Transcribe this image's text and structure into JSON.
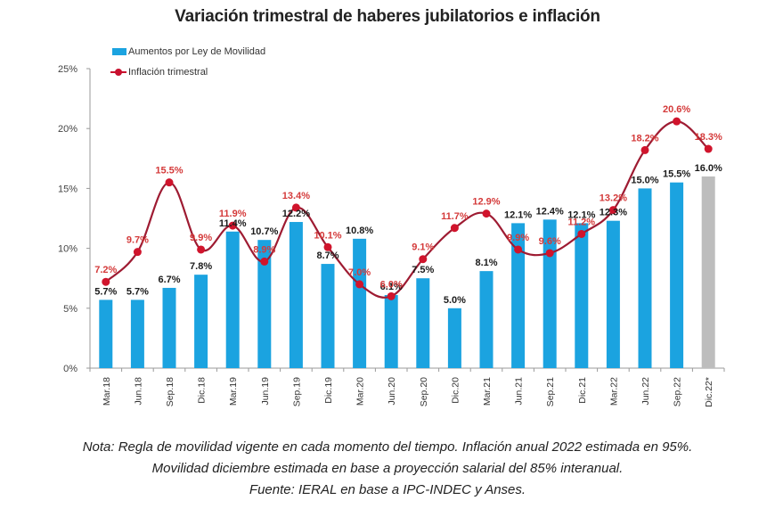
{
  "chart_data": {
    "type": "bar",
    "title": "Variación trimestral de haberes jubilatorios e inflación",
    "xlabel": "",
    "ylabel": "",
    "ylim": [
      0,
      25
    ],
    "yticks": [
      "0%",
      "5%",
      "10%",
      "15%",
      "20%",
      "25%"
    ],
    "ytick_values": [
      0,
      5,
      10,
      15,
      20,
      25
    ],
    "grid": false,
    "legend_position": "top-left",
    "categories": [
      "Mar.18",
      "Jun.18",
      "Sep.18",
      "Dic.18",
      "Mar.19",
      "Jun.19",
      "Sep.19",
      "Dic.19",
      "Mar.20",
      "Jun.20",
      "Sep.20",
      "Dic.20",
      "Mar.21",
      "Jun.21",
      "Sep.21",
      "Dic.21",
      "Mar.22",
      "Jun.22",
      "Sep.22",
      "Dic.22*"
    ],
    "series": [
      {
        "name": "Aumentos por Ley de Movilidad",
        "type": "bar",
        "color": "#1ba3e0",
        "estimated_color": "#bdbdbd",
        "estimated_index": 19,
        "values": [
          5.7,
          5.7,
          6.7,
          7.8,
          11.4,
          10.7,
          12.2,
          8.7,
          10.8,
          6.1,
          7.5,
          5.0,
          8.1,
          12.1,
          12.4,
          12.1,
          12.3,
          15.0,
          15.5,
          16.0
        ],
        "labels": [
          "5.7%",
          "5.7%",
          "6.7%",
          "7.8%",
          "11.4%",
          "10.7%",
          "12.2%",
          "8.7%",
          "10.8%",
          "6.1%",
          "7.5%",
          "5.0%",
          "8.1%",
          "12.1%",
          "12.4%",
          "12.1%",
          "12.3%",
          "15.0%",
          "15.5%",
          "16.0%"
        ]
      },
      {
        "name": "Inflación trimestral",
        "type": "line",
        "color": "#c8102e",
        "smooth": true,
        "values": [
          7.2,
          9.7,
          15.5,
          9.9,
          11.9,
          8.9,
          13.4,
          10.1,
          7.0,
          6.0,
          9.1,
          11.7,
          12.9,
          9.9,
          9.6,
          11.2,
          13.2,
          18.2,
          20.6,
          18.3
        ],
        "labels": [
          "7.2%",
          "9.7%",
          "15.5%",
          "9.9%",
          "11.9%",
          "8.9%",
          "13.4%",
          "10.1%",
          "7.0%",
          "6.0%",
          "9.1%",
          "11.7%",
          "12.9%",
          "9.9%",
          "9.6%",
          "11.2%",
          "13.2%",
          "18.2%",
          "20.6%",
          "18.3%"
        ]
      }
    ],
    "notes": [
      "Nota: Regla de movilidad vigente en cada momento del tiempo. Inflación anual 2022 estimada en 95%.",
      "Movilidad diciembre estimada en base a proyección salarial del 85% interanual.",
      "Fuente: IERAL en base a IPC-INDEC y Anses."
    ]
  }
}
